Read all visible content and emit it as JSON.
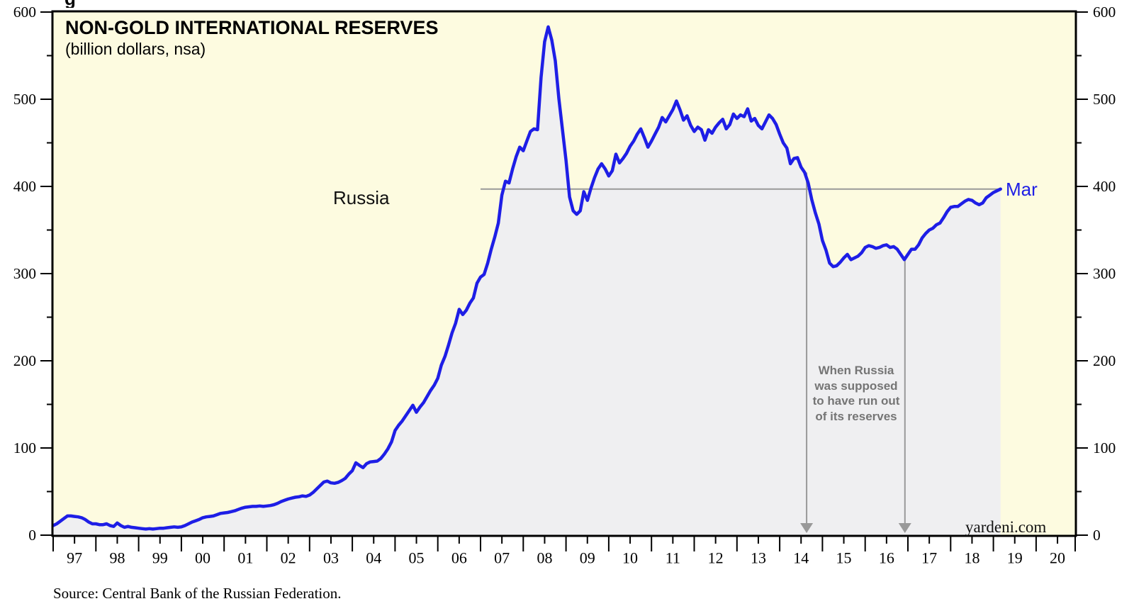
{
  "figure_heading_fragment": "g",
  "chart": {
    "title": "NON-GOLD INTERNATIONAL RESERVES",
    "subtitle": "(billion dollars, nsa)",
    "series_label": "Russia",
    "end_label": "Mar",
    "watermark": "yardeni.com",
    "source": "Source: Central Bank of the Russian Federation.",
    "annotation": {
      "lines": [
        "When Russia",
        "was supposed",
        "to have run out",
        "of its reserves"
      ]
    },
    "colors": {
      "plot_background": "#fdfbe0",
      "area_fill": "#efeff1",
      "line": "#1e1ee6",
      "reference_gray": "#999999",
      "annotation_text": "#757575",
      "axis": "#000000"
    }
  },
  "chart_data": {
    "type": "area",
    "title": "NON-GOLD INTERNATIONAL RESERVES",
    "subtitle": "(billion dollars, nsa)",
    "series_name": "Russia",
    "unit": "billion dollars, nsa",
    "frequency": "monthly",
    "start_year": 1997,
    "start_month": 1,
    "end_label": "Mar 2019",
    "ylim": [
      0,
      600
    ],
    "y_major_ticks": [
      0,
      100,
      200,
      300,
      400,
      500,
      600
    ],
    "y_minor_ticks": [
      50,
      150,
      250,
      350,
      450,
      550
    ],
    "x_year_labels": [
      "97",
      "98",
      "99",
      "00",
      "01",
      "02",
      "03",
      "04",
      "05",
      "06",
      "07",
      "08",
      "09",
      "10",
      "11",
      "12",
      "13",
      "14",
      "15",
      "16",
      "17",
      "18",
      "19",
      "20"
    ],
    "x_axis_start_year": 1997,
    "x_axis_end_year": 2021,
    "values": [
      11,
      13,
      16,
      19,
      22,
      22,
      21.5,
      21,
      20,
      18,
      15,
      13,
      13,
      12,
      12,
      13,
      11,
      10,
      14,
      11,
      9,
      10,
      9,
      8.5,
      8,
      7.5,
      7,
      7.5,
      7,
      7.5,
      8,
      8,
      8.5,
      9,
      9.5,
      9,
      9.5,
      11,
      13,
      15,
      16.5,
      18,
      20,
      21,
      21.5,
      22,
      23.5,
      25,
      25.5,
      26,
      27,
      28,
      29.5,
      31,
      32,
      32.5,
      33,
      33,
      33.5,
      33,
      33.5,
      34,
      35,
      36.5,
      38.5,
      40,
      41.5,
      42.5,
      43.5,
      44,
      45,
      44.5,
      46,
      49,
      53,
      57,
      61,
      62,
      60,
      59.5,
      60.5,
      62.5,
      65,
      70,
      74,
      83,
      80,
      77.5,
      82,
      84,
      84.5,
      85,
      88,
      93,
      99,
      107,
      120,
      126,
      131,
      137,
      143,
      149,
      141,
      147,
      152,
      159,
      166,
      172,
      180,
      195,
      205,
      218,
      232,
      243,
      259,
      253,
      258,
      266,
      272,
      289,
      296,
      299,
      312,
      328,
      342,
      358,
      390,
      406,
      404,
      420,
      434,
      445,
      441,
      452,
      463,
      466,
      465,
      525,
      566,
      583,
      568,
      544,
      501,
      465,
      430,
      388,
      372,
      368,
      372,
      394,
      384,
      398,
      410,
      420,
      426,
      420,
      412,
      418,
      437,
      427,
      432,
      438,
      446,
      452,
      460,
      466,
      456,
      445,
      452,
      460,
      468,
      479,
      474,
      481,
      488,
      498,
      488,
      476,
      481,
      470,
      463,
      468,
      465,
      453,
      465,
      461,
      468,
      473,
      477,
      466,
      471,
      483,
      478,
      482,
      480,
      489,
      475,
      478,
      470,
      466,
      474,
      482,
      478,
      471,
      460,
      450,
      444,
      426,
      432,
      433,
      422,
      416,
      404,
      385,
      370,
      357,
      338,
      327,
      312,
      308,
      309,
      313,
      318,
      322,
      316,
      318,
      320,
      324,
      330,
      332,
      331,
      329,
      330,
      332,
      333,
      330,
      331,
      328,
      322,
      316,
      322,
      328,
      328,
      333,
      341,
      346,
      350,
      352,
      356,
      358,
      364,
      371,
      376,
      377,
      377,
      380,
      383,
      385,
      384,
      381,
      379,
      381,
      387,
      390,
      393,
      395,
      397
    ],
    "reference_line": {
      "value": 397,
      "start_year": 2007.0,
      "label": "Mar"
    },
    "arrows": [
      {
        "year": 2014.63,
        "from_value": 416
      },
      {
        "year": 2016.93,
        "from_value": 316
      }
    ],
    "grid": false,
    "legend_position": "none"
  }
}
